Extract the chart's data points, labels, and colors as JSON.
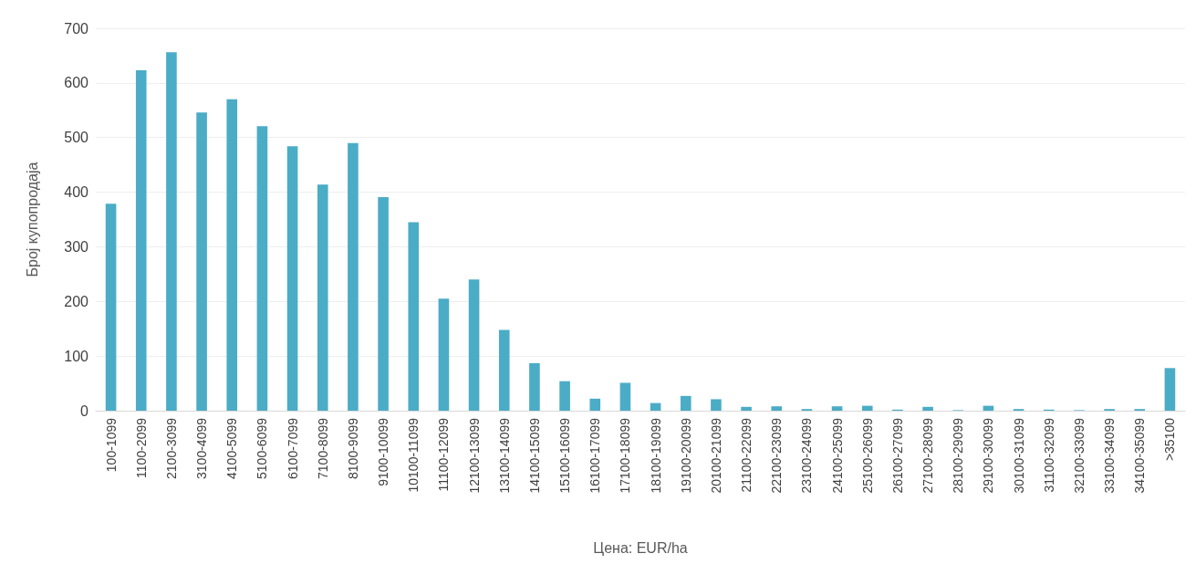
{
  "chart_data": {
    "type": "bar",
    "xlabel": "Цена: EUR/ha",
    "ylabel": "Број купопродаја",
    "categories": [
      "100-1099",
      "1100-2099",
      "2100-3099",
      "3100-4099",
      "4100-5099",
      "5100-6099",
      "6100-7099",
      "7100-8099",
      "8100-9099",
      "9100-10099",
      "10100-11099",
      "11100-12099",
      "12100-13099",
      "13100-14099",
      "14100-15099",
      "15100-16099",
      "16100-17099",
      "17100-18099",
      "18100-19099",
      "19100-20099",
      "20100-21099",
      "21100-22099",
      "22100-23099",
      "23100-24099",
      "24100-25099",
      "25100-26099",
      "26100-27099",
      "27100-28099",
      "28100-29099",
      "29100-30099",
      "30100-31099",
      "31100-32099",
      "32100-33099",
      "33100-34099",
      "34100-35099",
      ">35100"
    ],
    "values": [
      379,
      623,
      656,
      546,
      570,
      521,
      484,
      414,
      490,
      391,
      345,
      205,
      240,
      148,
      87,
      54,
      22,
      51,
      14,
      27,
      21,
      7,
      8,
      3,
      8,
      9,
      2,
      7,
      1,
      9,
      3,
      2,
      1,
      3,
      3,
      78
    ],
    "color": "#4bacc6",
    "ylim": [
      0,
      700
    ],
    "yticks": [
      0,
      100,
      200,
      300,
      400,
      500,
      600,
      700
    ],
    "grid": "y"
  }
}
